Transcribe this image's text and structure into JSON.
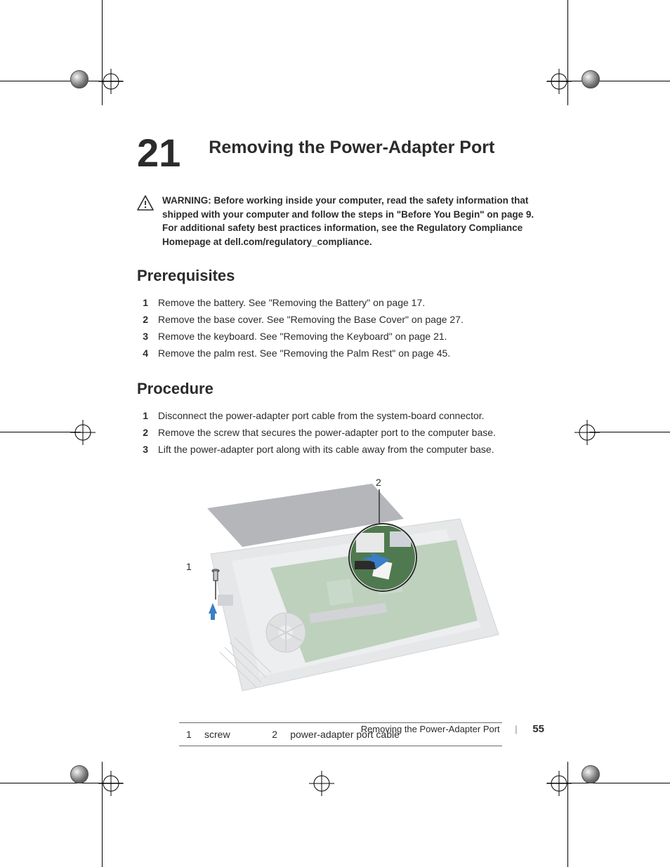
{
  "chapter": {
    "number": "21",
    "title": "Removing the Power-Adapter Port"
  },
  "warning": {
    "label": "WARNING:",
    "text": "Before working inside your computer, read the safety information that shipped with your computer and follow the steps in \"Before You Begin\" on page 9. For additional safety best practices information, see the Regulatory Compliance Homepage at dell.com/regulatory_compliance."
  },
  "sections": {
    "prerequisites": {
      "heading": "Prerequisites",
      "items": [
        "Remove the battery. See \"Removing the Battery\" on page 17.",
        "Remove the base cover. See \"Removing the Base Cover\" on page 27.",
        "Remove the keyboard. See \"Removing the Keyboard\" on page 21.",
        "Remove the palm rest. See \"Removing the Palm Rest\" on page 45."
      ]
    },
    "procedure": {
      "heading": "Procedure",
      "items": [
        "Disconnect the power-adapter port cable from the system-board connector.",
        "Remove the screw that secures the power-adapter port to the computer base.",
        "Lift the power-adapter port along with its cable away from the computer base."
      ]
    }
  },
  "figure": {
    "callouts": {
      "1": "1",
      "2": "2"
    },
    "legend": [
      {
        "key": "1",
        "label": "screw"
      },
      {
        "key": "2",
        "label": "power-adapter port cable"
      }
    ],
    "colors": {
      "board": "#6e9a6e",
      "silver": "#c9cbcd",
      "darkgray": "#5a6068",
      "arrow": "#3a7fc8",
      "lens_ring": "#2b2b2b"
    }
  },
  "footer": {
    "title": "Removing the Power-Adapter Port",
    "page": "55"
  },
  "page_bg": "#ffffff",
  "text_color": "#2b2b2b"
}
